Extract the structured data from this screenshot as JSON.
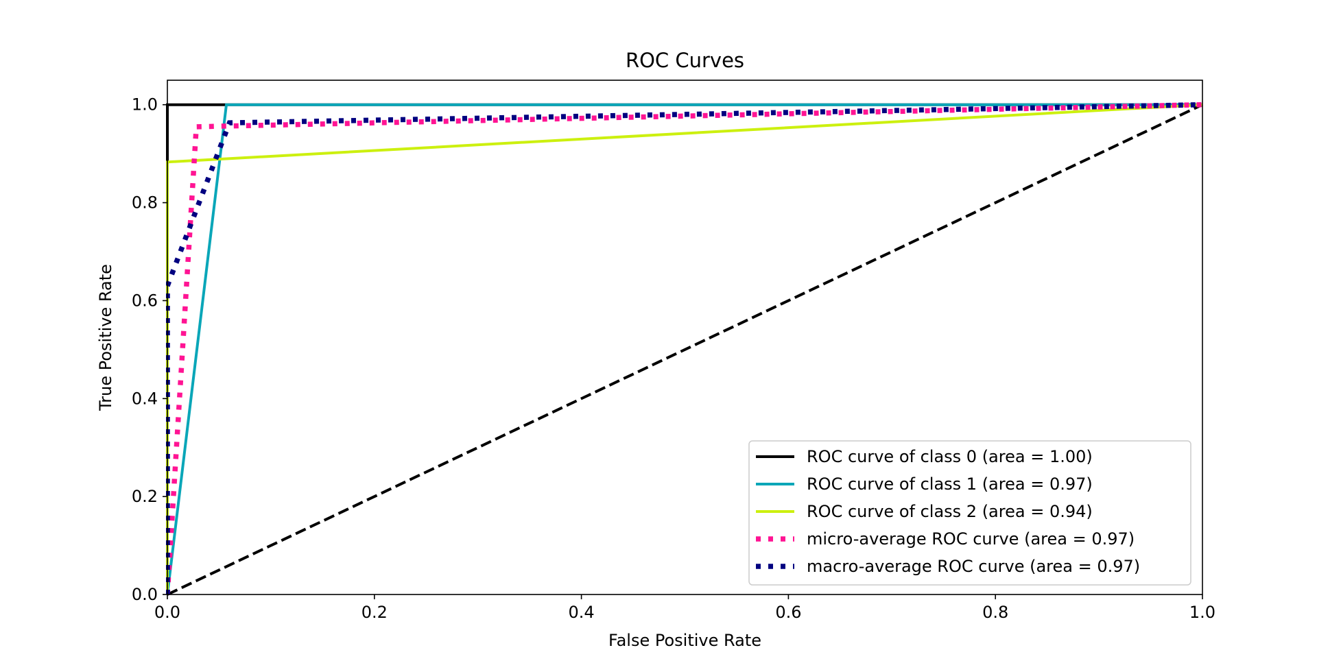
{
  "chart_data": {
    "type": "line",
    "title": "ROC Curves",
    "xlabel": "False Positive Rate",
    "ylabel": "True Positive Rate",
    "xlim": [
      0.0,
      1.0
    ],
    "ylim": [
      0.0,
      1.05
    ],
    "xticks": [
      "0.0",
      "0.2",
      "0.4",
      "0.6",
      "0.8",
      "1.0"
    ],
    "yticks": [
      "0.0",
      "0.2",
      "0.4",
      "0.6",
      "0.8",
      "1.0"
    ],
    "grid": false,
    "legend_position": "lower-right",
    "series": [
      {
        "name": "ROC curve of class 0 (area = 1.00)",
        "color": "#000000",
        "style": "solid",
        "x": [
          0.0,
          0.0,
          1.0
        ],
        "y": [
          0.0,
          1.0,
          1.0
        ]
      },
      {
        "name": "ROC curve of class 1 (area = 0.97)",
        "color": "#0aa6b8",
        "style": "solid",
        "x": [
          0.0,
          0.057,
          1.0
        ],
        "y": [
          0.0,
          1.0,
          1.0
        ]
      },
      {
        "name": "ROC curve of class 2 (area = 0.94)",
        "color": "#ccf00f",
        "style": "solid",
        "x": [
          0.0,
          0.0,
          1.0
        ],
        "y": [
          0.0,
          0.883,
          1.0
        ]
      },
      {
        "name": "micro-average ROC curve (area = 0.97)",
        "color": "#ff1493",
        "style": "dotted",
        "x": [
          0.0,
          0.0,
          0.028,
          1.0
        ],
        "y": [
          0.0,
          0.0,
          0.955,
          1.0
        ]
      },
      {
        "name": "macro-average ROC curve (area = 0.97)",
        "color": "#000080",
        "style": "dotted",
        "x": [
          0.0,
          0.0,
          0.06,
          1.0
        ],
        "y": [
          0.0,
          0.63,
          0.963,
          1.0
        ]
      }
    ],
    "reference_line": {
      "color": "#000000",
      "style": "dashed",
      "x": [
        0.0,
        1.0
      ],
      "y": [
        0.0,
        1.0
      ]
    }
  }
}
